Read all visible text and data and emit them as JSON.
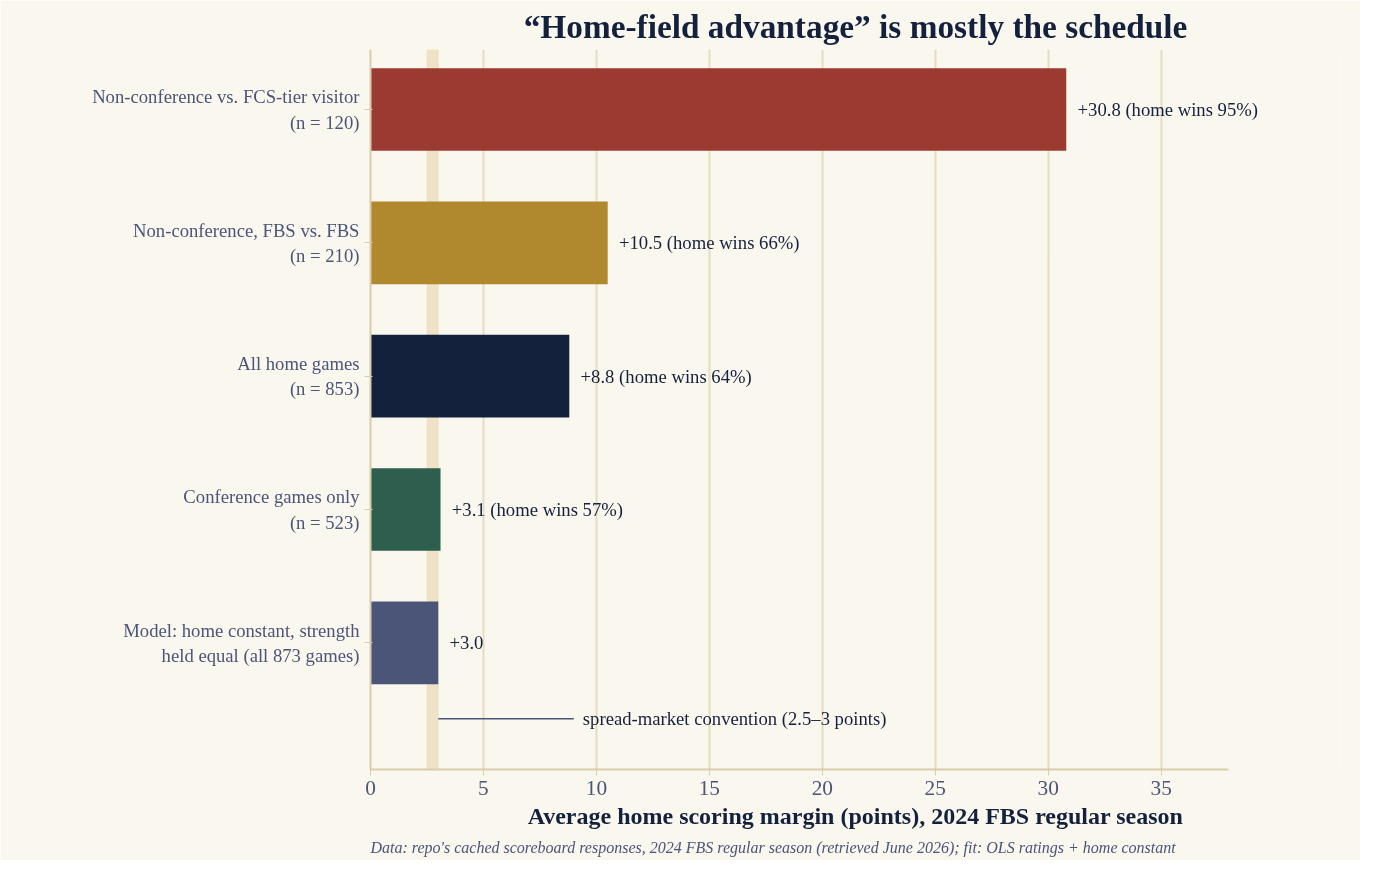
{
  "chart_data": {
    "type": "bar",
    "orientation": "horizontal",
    "title": "“Home-field advantage” is mostly the schedule",
    "xlabel": "Average home scoring margin (points), 2024 FBS regular season",
    "categories": [
      "Non-conference vs. FCS-tier visitor\n(n = 120)",
      "Non-conference, FBS vs. FBS\n(n = 210)",
      "All home games\n(n = 853)",
      "Conference games only\n(n = 523)",
      "Model: home constant, strength\nheld equal (all 873 games)"
    ],
    "values": [
      30.8,
      10.5,
      8.8,
      3.1,
      3.0
    ],
    "colors": [
      "#9b3a30",
      "#b0882e",
      "#14213d",
      "#2e5e4e",
      "#4a5578"
    ],
    "value_labels": [
      "+30.8  (home wins 95%)",
      "+10.5  (home wins 66%)",
      "+8.8  (home wins 64%)",
      "+3.1  (home wins 57%)",
      "+3.0"
    ],
    "xlim": [
      0,
      38
    ],
    "xticks": [
      0,
      5,
      10,
      15,
      20,
      25,
      30,
      35
    ],
    "grid": "x",
    "bands": [
      {
        "axis": "x",
        "from": 2.5,
        "to": 3,
        "label": "spread-market convention (2.5–3 points)",
        "color": "#efe2c6"
      }
    ],
    "annotations": [
      "Data: repo's cached scoreboard responses, 2024 FBS regular season (retrieved June 2026); fit: OLS ratings + home constant"
    ]
  }
}
